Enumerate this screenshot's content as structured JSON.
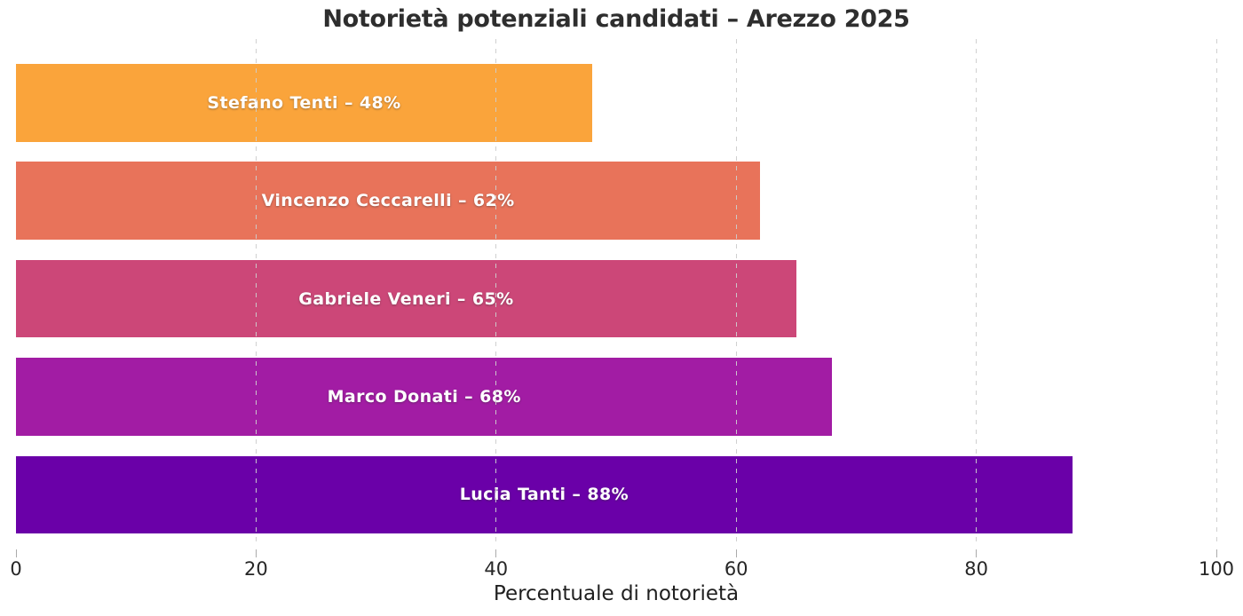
{
  "chart_data": {
    "type": "bar",
    "orientation": "horizontal",
    "title": "Notorietà potenziali candidati – Arezzo 2025",
    "xlabel": "Percentuale di notorietà",
    "categories": [
      "Stefano Tenti",
      "Vincenzo Ceccarelli",
      "Gabriele Veneri",
      "Marco Donati",
      "Lucia Tanti"
    ],
    "values": [
      48,
      62,
      65,
      68,
      88
    ],
    "bar_labels": [
      "Stefano Tenti – 48%",
      "Vincenzo Ceccarelli – 62%",
      "Gabriele Veneri – 65%",
      "Marco Donati – 68%",
      "Lucia Tanti – 88%"
    ],
    "bar_colors": [
      "#FAA43B",
      "#E8735A",
      "#CC4778",
      "#A21CA4",
      "#6A00A8"
    ],
    "bar_label_color": "#ffffff",
    "xlim": [
      0,
      100
    ],
    "xticks": [
      "0",
      "20",
      "40",
      "60",
      "80",
      "100"
    ],
    "xtick_values": [
      0,
      20,
      40,
      60,
      80,
      100
    ],
    "grid": {
      "axis": "x",
      "style": "dashed",
      "color": "#cdcdcd"
    },
    "legend": "none",
    "title_color": "#2e2e2e",
    "tick_label_color": "#262626"
  }
}
